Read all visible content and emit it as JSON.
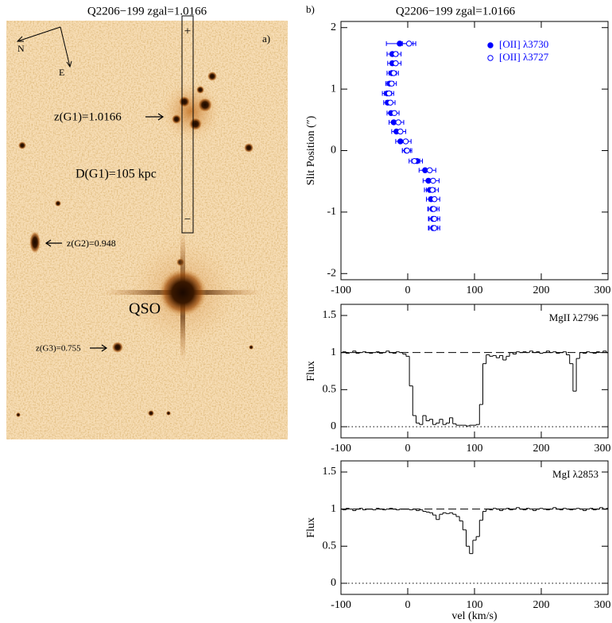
{
  "image_panel": {
    "title": "Q2206−199 zgal=1.0166",
    "panel_label": "a)",
    "compass": {
      "north": "N",
      "east": "E"
    },
    "slit": {
      "top": "+",
      "bottom": "−"
    },
    "labels": {
      "g1_redshift": "z(G1)=1.0166",
      "g1_distance": "D(G1)=105 kpc",
      "g2_redshift": "z(G2)=0.948",
      "g3_redshift": "z(G3)=0.755",
      "qso": "QSO"
    }
  },
  "chart_data": [
    {
      "type": "scatter",
      "title": "Q2206−199 zgal=1.0166",
      "panel_label": "b)",
      "y_label": "Slit Position (″)",
      "xlim": [
        -100,
        300
      ],
      "ylim": [
        -2.1,
        2.1
      ],
      "xticks": [
        -100,
        0,
        100,
        200,
        300
      ],
      "yticks": [
        -2,
        -1,
        0,
        1,
        2
      ],
      "legend": "top-right",
      "series": [
        {
          "name": "[OII] λ3730",
          "color": "#0000ff",
          "marker": "filled",
          "x": [
            -12,
            -23,
            -23,
            -24,
            -27,
            -31,
            -30,
            -25,
            -21,
            -17,
            -11,
            -2,
            14,
            26,
            31,
            33,
            35,
            37,
            38,
            38
          ],
          "y": [
            1.74,
            1.57,
            1.42,
            1.26,
            1.09,
            0.93,
            0.78,
            0.61,
            0.46,
            0.31,
            0.15,
            0,
            -0.17,
            -0.32,
            -0.49,
            -0.64,
            -0.79,
            -0.95,
            -1.11,
            -1.26
          ],
          "xerr": [
            20,
            8,
            7,
            7,
            6,
            7,
            6,
            6,
            7,
            7,
            7,
            6,
            8,
            9,
            8,
            8,
            7,
            7,
            7,
            7
          ]
        },
        {
          "name": "[OII] λ3727",
          "color": "#0000ff",
          "marker": "open",
          "x": [
            2,
            -18,
            -18,
            -21,
            -24,
            -28,
            -26,
            -20,
            -14,
            -11,
            -3,
            -1,
            10,
            33,
            38,
            37,
            40,
            39,
            40,
            40
          ],
          "y": [
            1.74,
            1.57,
            1.42,
            1.26,
            1.09,
            0.93,
            0.78,
            0.61,
            0.46,
            0.31,
            0.15,
            0,
            -0.17,
            -0.32,
            -0.49,
            -0.64,
            -0.79,
            -0.95,
            -1.11,
            -1.26
          ],
          "xerr": [
            10,
            8,
            8,
            7,
            7,
            7,
            7,
            7,
            8,
            8,
            8,
            7,
            8,
            9,
            9,
            9,
            8,
            8,
            8,
            8
          ]
        }
      ]
    },
    {
      "type": "line",
      "step": true,
      "label": "MgII λ2796",
      "y_label": "Flux",
      "xlim": [
        -100,
        300
      ],
      "ylim": [
        -0.15,
        1.65
      ],
      "xticks": [
        -100,
        0,
        100,
        200,
        300
      ],
      "yticks": [
        0,
        0.5,
        1,
        1.5
      ],
      "hlines": [
        {
          "value": 1,
          "style": "dashed"
        },
        {
          "value": 0,
          "style": "dotted"
        }
      ],
      "x": [
        -100,
        -95,
        -90,
        -85,
        -80,
        -75,
        -70,
        -65,
        -60,
        -55,
        -50,
        -45,
        -40,
        -35,
        -30,
        -25,
        -20,
        -15,
        -10,
        -5,
        0,
        5,
        10,
        15,
        20,
        25,
        30,
        35,
        40,
        45,
        50,
        55,
        60,
        65,
        70,
        75,
        80,
        85,
        90,
        95,
        100,
        105,
        110,
        115,
        120,
        125,
        130,
        135,
        140,
        145,
        150,
        155,
        160,
        165,
        170,
        175,
        180,
        185,
        190,
        195,
        200,
        205,
        210,
        215,
        220,
        225,
        230,
        235,
        240,
        245,
        250,
        255,
        260,
        265,
        270,
        275,
        280,
        285,
        290,
        295,
        300
      ],
      "series": [
        {
          "color": "#000000",
          "values": [
            1.0,
            1.01,
            0.99,
            1.0,
            1.02,
            0.99,
            1.0,
            1.01,
            1.0,
            0.99,
            1.0,
            1.01,
            0.99,
            1.0,
            1.02,
            1.0,
            0.99,
            1.01,
            1.0,
            0.98,
            0.95,
            0.55,
            0.15,
            0.05,
            0.03,
            0.15,
            0.08,
            0.1,
            0.03,
            0.05,
            0.1,
            0.03,
            0.05,
            0.12,
            0.04,
            0.02,
            0.02,
            0.02,
            0.01,
            0.02,
            0.02,
            0.03,
            0.3,
            0.85,
            0.97,
            0.95,
            0.96,
            0.93,
            0.96,
            0.9,
            0.95,
            1.0,
            0.98,
            1.01,
            1.0,
            1.01,
            1.0,
            1.02,
            1.0,
            1.01,
            0.99,
            1.0,
            1.02,
            1.0,
            1.01,
            0.99,
            1.0,
            1.01,
            0.97,
            0.85,
            0.48,
            0.92,
            1.0,
            0.99,
            1.01,
            1.0,
            0.99,
            1.01,
            1.0,
            1.02,
            1.0
          ]
        }
      ]
    },
    {
      "type": "line",
      "step": true,
      "label": "MgI λ2853",
      "y_label": "Flux",
      "x_label": "vel (km/s)",
      "xlim": [
        -100,
        300
      ],
      "ylim": [
        -0.15,
        1.65
      ],
      "xticks": [
        -100,
        0,
        100,
        200,
        300
      ],
      "yticks": [
        0,
        0.5,
        1,
        1.5
      ],
      "hlines": [
        {
          "value": 1,
          "style": "dashed"
        },
        {
          "value": 0,
          "style": "dotted"
        }
      ],
      "x": [
        -100,
        -95,
        -90,
        -85,
        -80,
        -75,
        -70,
        -65,
        -60,
        -55,
        -50,
        -45,
        -40,
        -35,
        -30,
        -25,
        -20,
        -15,
        -10,
        -5,
        0,
        5,
        10,
        15,
        20,
        25,
        30,
        35,
        40,
        45,
        50,
        55,
        60,
        65,
        70,
        75,
        80,
        85,
        90,
        95,
        100,
        105,
        110,
        115,
        120,
        125,
        130,
        135,
        140,
        145,
        150,
        155,
        160,
        165,
        170,
        175,
        180,
        185,
        190,
        195,
        200,
        205,
        210,
        215,
        220,
        225,
        230,
        235,
        240,
        245,
        250,
        255,
        260,
        265,
        270,
        275,
        280,
        285,
        290,
        295,
        300
      ],
      "series": [
        {
          "color": "#000000",
          "values": [
            1.0,
            0.99,
            1.01,
            1.0,
            0.98,
            1.0,
            1.01,
            0.99,
            1.0,
            1.0,
            0.99,
            1.01,
            1.0,
            0.99,
            1.0,
            1.01,
            1.0,
            0.99,
            1.0,
            1.0,
            1.0,
            0.99,
            1.0,
            0.98,
            0.99,
            0.97,
            0.96,
            0.95,
            0.92,
            0.86,
            0.93,
            0.95,
            0.94,
            0.95,
            0.93,
            0.9,
            0.84,
            0.72,
            0.5,
            0.4,
            0.58,
            0.63,
            0.85,
            0.97,
            1.0,
            0.99,
            1.01,
            1.0,
            0.98,
            1.0,
            1.01,
            0.99,
            1.0,
            1.02,
            1.0,
            0.99,
            1.01,
            1.0,
            0.98,
            1.0,
            1.01,
            1.0,
            0.99,
            1.0,
            1.02,
            1.0,
            0.99,
            1.01,
            1.0,
            0.99,
            1.0,
            1.01,
            1.0,
            0.98,
            1.0,
            1.01,
            0.99,
            1.0,
            1.02,
            1.0,
            1.01
          ]
        }
      ]
    }
  ]
}
